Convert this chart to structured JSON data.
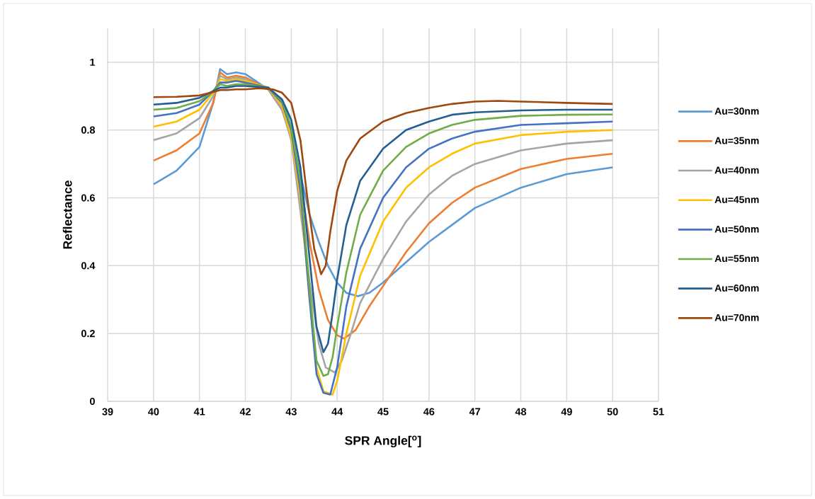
{
  "chart_data": {
    "type": "line",
    "xlabel": "SPR Angle[$^{o}$]",
    "ylabel": "Reflectance",
    "xlim": [
      39,
      51
    ],
    "ylim": [
      0,
      1.1
    ],
    "xticks": [
      39,
      40,
      41,
      42,
      43,
      44,
      45,
      46,
      47,
      48,
      49,
      50,
      51
    ],
    "yticks": [
      0,
      0.2,
      0.4,
      0.6,
      0.8,
      1
    ],
    "grid": true,
    "legend": "right",
    "line_style": "solid",
    "marker": "none",
    "series": [
      {
        "name": "Au=30nm",
        "color": "#5b9bd5",
        "x": [
          40,
          40.5,
          41,
          41.3,
          41.45,
          41.6,
          41.8,
          42,
          42.5,
          42.8,
          43,
          43.2,
          43.4,
          43.6,
          43.8,
          44,
          44.2,
          44.45,
          44.7,
          45,
          45.5,
          46,
          46.5,
          47,
          48,
          49,
          50
        ],
        "values": [
          0.64,
          0.68,
          0.75,
          0.88,
          0.98,
          0.965,
          0.97,
          0.965,
          0.92,
          0.86,
          0.78,
          0.67,
          0.55,
          0.47,
          0.4,
          0.35,
          0.32,
          0.31,
          0.32,
          0.35,
          0.41,
          0.47,
          0.52,
          0.57,
          0.63,
          0.67,
          0.69
        ]
      },
      {
        "name": "Au=35nm",
        "color": "#ed7d31",
        "x": [
          40,
          40.5,
          41,
          41.3,
          41.45,
          41.6,
          41.8,
          42,
          42.5,
          42.8,
          43,
          43.2,
          43.4,
          43.6,
          43.8,
          44,
          44.15,
          44.4,
          44.7,
          45,
          45.5,
          46,
          46.5,
          47,
          48,
          49,
          50
        ],
        "values": [
          0.71,
          0.74,
          0.79,
          0.88,
          0.97,
          0.955,
          0.96,
          0.955,
          0.92,
          0.86,
          0.78,
          0.65,
          0.47,
          0.33,
          0.24,
          0.195,
          0.185,
          0.21,
          0.28,
          0.34,
          0.44,
          0.525,
          0.585,
          0.63,
          0.685,
          0.715,
          0.73
        ]
      },
      {
        "name": "Au=40nm",
        "color": "#a5a5a5",
        "x": [
          40,
          40.5,
          41,
          41.3,
          41.45,
          41.6,
          41.8,
          42,
          42.5,
          42.8,
          43,
          43.4,
          43.6,
          43.75,
          43.95,
          44.1,
          44.3,
          44.5,
          45,
          45.5,
          46,
          46.5,
          47,
          48,
          49,
          50
        ],
        "values": [
          0.77,
          0.79,
          0.835,
          0.9,
          0.96,
          0.95,
          0.955,
          0.95,
          0.92,
          0.86,
          0.77,
          0.35,
          0.17,
          0.1,
          0.085,
          0.12,
          0.2,
          0.29,
          0.42,
          0.53,
          0.61,
          0.665,
          0.7,
          0.74,
          0.76,
          0.77
        ]
      },
      {
        "name": "Au=45nm",
        "color": "#ffc000",
        "x": [
          40,
          40.5,
          41,
          41.3,
          41.45,
          41.6,
          41.8,
          42,
          42.5,
          42.8,
          43,
          43.2,
          43.4,
          43.55,
          43.7,
          43.9,
          44,
          44.2,
          44.5,
          45,
          45.5,
          46,
          46.5,
          47,
          48,
          49,
          50
        ],
        "values": [
          0.81,
          0.825,
          0.86,
          0.91,
          0.95,
          0.945,
          0.95,
          0.945,
          0.925,
          0.87,
          0.78,
          0.6,
          0.3,
          0.1,
          0.03,
          0.02,
          0.06,
          0.2,
          0.37,
          0.53,
          0.63,
          0.69,
          0.73,
          0.76,
          0.785,
          0.795,
          0.8
        ]
      },
      {
        "name": "Au=50nm",
        "color": "#4472c4",
        "x": [
          40,
          40.5,
          41,
          41.3,
          41.45,
          41.6,
          41.8,
          42,
          42.5,
          42.8,
          43,
          43.2,
          43.4,
          43.55,
          43.7,
          43.85,
          44,
          44.2,
          44.5,
          45,
          45.5,
          46,
          46.5,
          47,
          48,
          49,
          50
        ],
        "values": [
          0.84,
          0.85,
          0.875,
          0.915,
          0.94,
          0.94,
          0.945,
          0.94,
          0.925,
          0.88,
          0.8,
          0.62,
          0.3,
          0.08,
          0.025,
          0.02,
          0.1,
          0.28,
          0.45,
          0.6,
          0.69,
          0.745,
          0.775,
          0.795,
          0.815,
          0.82,
          0.825
        ]
      },
      {
        "name": "Au=55nm",
        "color": "#70ad47",
        "x": [
          40,
          40.5,
          41,
          41.3,
          41.45,
          41.6,
          41.8,
          42,
          42.5,
          42.8,
          43,
          43.2,
          43.4,
          43.55,
          43.7,
          43.8,
          43.9,
          44,
          44.2,
          44.5,
          45,
          45.5,
          46,
          46.5,
          47,
          48,
          49,
          50
        ],
        "values": [
          0.86,
          0.865,
          0.885,
          0.915,
          0.935,
          0.93,
          0.935,
          0.935,
          0.925,
          0.885,
          0.81,
          0.65,
          0.33,
          0.12,
          0.075,
          0.08,
          0.13,
          0.22,
          0.38,
          0.55,
          0.68,
          0.75,
          0.79,
          0.815,
          0.83,
          0.842,
          0.845,
          0.846
        ]
      },
      {
        "name": "Au=60nm",
        "color": "#255e91",
        "x": [
          40,
          40.5,
          41,
          41.3,
          41.45,
          41.6,
          41.8,
          42,
          42.5,
          42.8,
          43,
          43.2,
          43.4,
          43.55,
          43.7,
          43.8,
          43.9,
          44,
          44.2,
          44.5,
          45,
          45.5,
          46,
          46.5,
          47,
          48,
          49,
          50
        ],
        "values": [
          0.875,
          0.88,
          0.895,
          0.915,
          0.925,
          0.925,
          0.93,
          0.93,
          0.925,
          0.89,
          0.83,
          0.69,
          0.42,
          0.22,
          0.145,
          0.17,
          0.26,
          0.36,
          0.52,
          0.65,
          0.745,
          0.8,
          0.825,
          0.845,
          0.852,
          0.858,
          0.86,
          0.86
        ]
      },
      {
        "name": "Au=70nm",
        "color": "#9e480e",
        "x": [
          40,
          40.5,
          41,
          41.3,
          41.45,
          41.6,
          41.8,
          42,
          42.3,
          42.6,
          42.8,
          43,
          43.2,
          43.35,
          43.5,
          43.65,
          43.75,
          43.85,
          44,
          44.2,
          44.5,
          45,
          45.5,
          46,
          46.5,
          47,
          47.5,
          48,
          49,
          50
        ],
        "values": [
          0.897,
          0.898,
          0.902,
          0.912,
          0.918,
          0.918,
          0.92,
          0.92,
          0.923,
          0.92,
          0.91,
          0.88,
          0.77,
          0.6,
          0.45,
          0.375,
          0.4,
          0.5,
          0.62,
          0.71,
          0.775,
          0.825,
          0.85,
          0.865,
          0.877,
          0.884,
          0.886,
          0.884,
          0.88,
          0.877
        ]
      }
    ]
  }
}
